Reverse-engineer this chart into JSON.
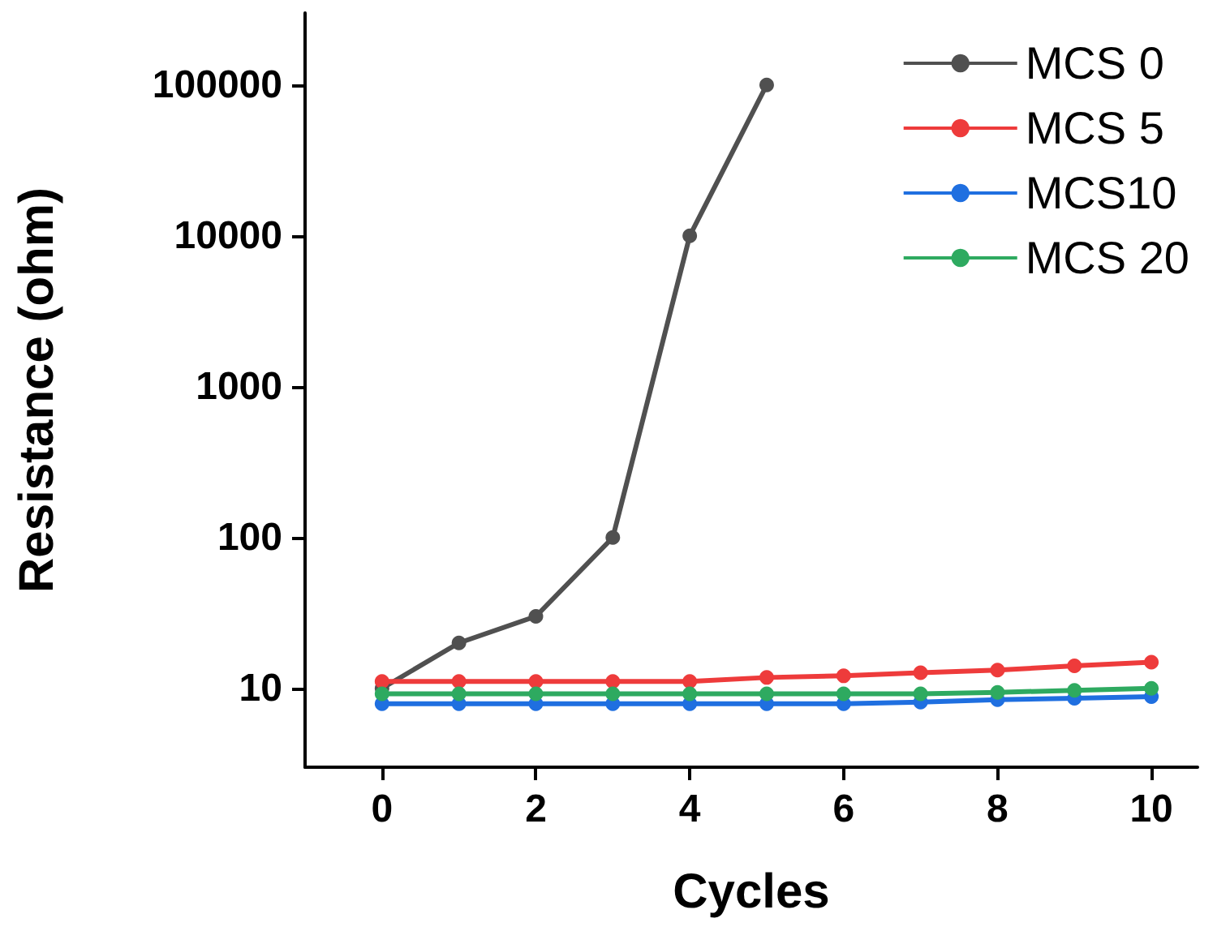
{
  "chart_data": {
    "type": "line",
    "xlabel": "Cycles",
    "ylabel": "Resistance (ohm)",
    "log": "y",
    "x": [
      0,
      1,
      2,
      3,
      4,
      5,
      6,
      7,
      8,
      9,
      10
    ],
    "xlim": [
      -1,
      10.6
    ],
    "xticks": [
      0,
      2,
      4,
      6,
      8,
      10
    ],
    "ylim": [
      3,
      300000
    ],
    "yticks": [
      10,
      100,
      1000,
      10000,
      100000
    ],
    "marker": "circle",
    "line_style": "solid",
    "legend": "top right",
    "grid": false,
    "series": [
      {
        "name": "MCS 0",
        "color": "#505050",
        "x": [
          0,
          1,
          2,
          3,
          4,
          5
        ],
        "values": [
          10,
          20,
          30,
          100,
          10000,
          100000
        ]
      },
      {
        "name": "MCS 5",
        "color": "#ee3b3b",
        "values": [
          11.1,
          11.1,
          11.1,
          11.1,
          11.1,
          11.8,
          12.1,
          12.7,
          13.2,
          14.1,
          14.9
        ]
      },
      {
        "name": "MCS10",
        "color": "#1f6fe0",
        "values": [
          7.9,
          7.9,
          7.9,
          7.9,
          7.9,
          7.9,
          7.9,
          8.1,
          8.4,
          8.6,
          8.8
        ]
      },
      {
        "name": "MCS 20",
        "color": "#2eaa60",
        "values": [
          9.2,
          9.2,
          9.2,
          9.2,
          9.2,
          9.2,
          9.2,
          9.2,
          9.4,
          9.7,
          10
        ]
      }
    ]
  }
}
